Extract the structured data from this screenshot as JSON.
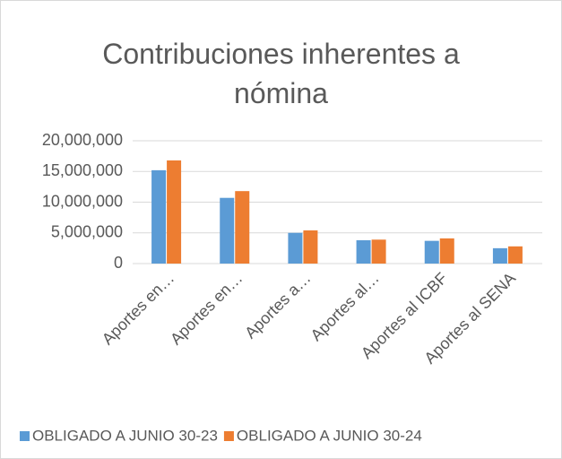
{
  "chart_data": {
    "type": "bar",
    "title": "Contribuciones inherentes a nómina",
    "categories": [
      "Aportes en…",
      "Aportes en…",
      "Aportes a…",
      "Aportes al…",
      "Aportes al ICBF",
      "Aportes al SENA"
    ],
    "series": [
      {
        "name": "OBLIGADO A JUNIO 30-23",
        "color": "#5b9bd5",
        "values": [
          15200000,
          10700000,
          5000000,
          3800000,
          3700000,
          2500000
        ]
      },
      {
        "name": "OBLIGADO A JUNIO 30-24",
        "color": "#ed7d31",
        "values": [
          16800000,
          11800000,
          5400000,
          3900000,
          4100000,
          2800000
        ]
      }
    ],
    "ylim": [
      0,
      20000000
    ],
    "yticks": [
      0,
      {
        "value": 5000000,
        "label": "5,000,000"
      },
      {
        "value": 10000000,
        "label": "10,000,000"
      },
      {
        "value": 15000000,
        "label": "15,000,000"
      },
      {
        "value": 20000000,
        "label": "20,000,000"
      }
    ],
    "grid": true,
    "legend": "bottom"
  }
}
